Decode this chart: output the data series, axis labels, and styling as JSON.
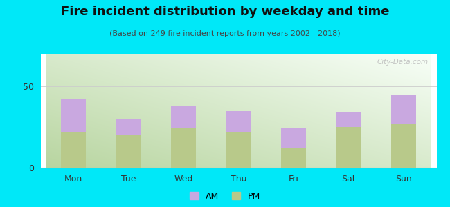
{
  "title": "Fire incident distribution by weekday and time",
  "subtitle": "(Based on 249 fire incident reports from years 2002 - 2018)",
  "categories": [
    "Mon",
    "Tue",
    "Wed",
    "Thu",
    "Fri",
    "Sat",
    "Sun"
  ],
  "pm_values": [
    22,
    20,
    24,
    22,
    12,
    25,
    27
  ],
  "am_values": [
    20,
    10,
    14,
    13,
    12,
    9,
    18
  ],
  "am_color": "#c9a8e0",
  "pm_color": "#b8c98a",
  "background_outer": "#00e8f8",
  "ylim": [
    0,
    70
  ],
  "yticks": [
    0,
    50
  ],
  "bar_width": 0.45,
  "watermark": "City-Data.com",
  "legend_am": "AM",
  "legend_pm": "PM",
  "title_fontsize": 13,
  "subtitle_fontsize": 8,
  "tick_fontsize": 9
}
